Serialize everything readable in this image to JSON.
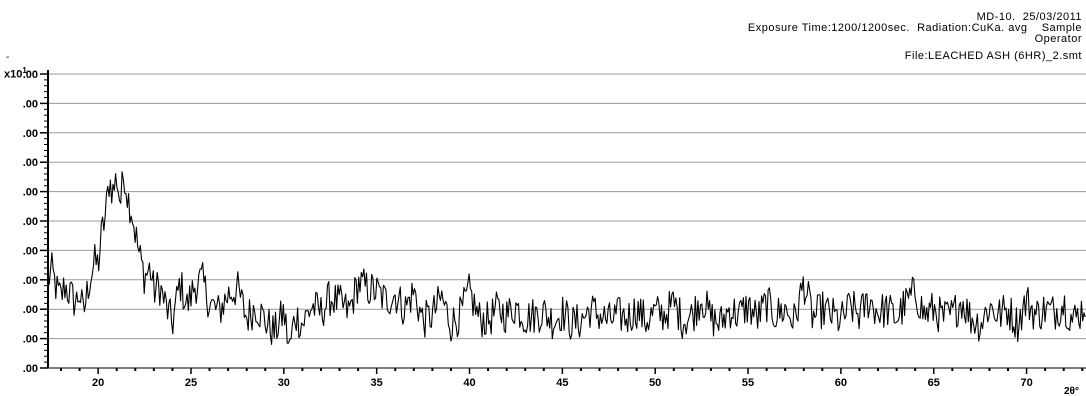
{
  "header": {
    "line1": "MD-10.  25/03/2011",
    "line2": "Exposure Time:1200/1200sec.  Radiation:CuKa. avg    Sample",
    "line3": "Operator",
    "line4": "File:LEACHED ASH (6HR)_2.smt",
    "stray_mark": "-"
  },
  "y_multiplier": {
    "base": "x10",
    "exp": "1"
  },
  "chart_data": {
    "type": "line",
    "title": "",
    "xlabel": "2θ°",
    "ylabel": "",
    "xlim": [
      17.3,
      73.2
    ],
    "ylim": [
      0,
      10
    ],
    "grid": "horizontal",
    "y_tick_labels": [
      ".00",
      ".00",
      ".00",
      ".00",
      ".00",
      ".00",
      ".00",
      ".00",
      ".00",
      ".00",
      ".00"
    ],
    "x_ticks": [
      20,
      25,
      30,
      35,
      40,
      45,
      50,
      55,
      60,
      65,
      70
    ],
    "x_tick_labels": [
      "20",
      "25",
      "30",
      "35",
      "40",
      "45",
      "50",
      "55",
      "60",
      "65",
      "70"
    ],
    "series": [
      {
        "color": "#000000",
        "x": [
          17.3,
          17.5,
          17.8,
          18.0,
          18.2,
          18.5,
          18.8,
          19.0,
          19.2,
          19.5,
          19.8,
          20.0,
          20.2,
          20.4,
          20.6,
          20.8,
          21.0,
          21.2,
          21.4,
          21.6,
          21.8,
          22.0,
          22.2,
          22.5,
          22.8,
          23.0,
          23.3,
          23.6,
          24.0,
          24.4,
          24.8,
          25.2,
          25.6,
          26.0,
          26.5,
          27.0,
          27.5,
          28.0,
          28.5,
          29.0,
          29.5,
          30.0,
          30.3,
          30.6,
          31.0,
          31.5,
          32.0,
          32.5,
          33.0,
          33.5,
          34.0,
          34.5,
          35.0,
          35.5,
          36.0,
          36.5,
          37.0,
          37.5,
          38.0,
          38.5,
          39.0,
          39.5,
          40.0,
          40.5,
          41.0,
          41.5,
          42.0,
          42.5,
          43.0,
          43.5,
          44.0,
          44.5,
          45.0,
          45.5,
          46.0,
          46.5,
          47.0,
          47.5,
          48.0,
          48.5,
          49.0,
          49.5,
          50.0,
          50.5,
          51.0,
          51.5,
          52.0,
          52.5,
          53.0,
          53.5,
          54.0,
          54.5,
          55.0,
          55.5,
          56.0,
          56.5,
          57.0,
          57.5,
          58.0,
          58.5,
          59.0,
          59.5,
          60.0,
          60.5,
          61.0,
          61.5,
          62.0,
          62.5,
          63.0,
          63.5,
          64.0,
          64.5,
          65.0,
          65.5,
          66.0,
          66.5,
          67.0,
          67.5,
          68.0,
          68.5,
          69.0,
          69.5,
          70.0,
          70.5,
          71.0,
          71.5,
          72.0,
          72.5,
          73.0,
          73.2
        ],
        "y": [
          3.0,
          3.3,
          2.6,
          2.4,
          2.8,
          2.5,
          2.2,
          2.6,
          1.8,
          2.9,
          3.6,
          3.5,
          4.6,
          5.2,
          6.4,
          6.0,
          6.5,
          5.6,
          6.7,
          5.8,
          5.4,
          4.6,
          3.9,
          3.1,
          3.4,
          2.6,
          2.8,
          2.2,
          1.5,
          2.9,
          2.1,
          2.8,
          3.0,
          2.2,
          1.9,
          2.5,
          2.7,
          1.7,
          2.1,
          1.6,
          1.2,
          1.9,
          0.6,
          1.8,
          1.5,
          2.1,
          1.9,
          2.4,
          2.2,
          1.9,
          2.9,
          2.7,
          2.6,
          2.3,
          2.5,
          2.0,
          2.6,
          1.6,
          1.8,
          2.4,
          1.5,
          1.8,
          2.6,
          1.7,
          1.6,
          2.0,
          1.8,
          2.1,
          1.7,
          1.8,
          1.9,
          1.6,
          1.9,
          1.5,
          1.6,
          2.0,
          1.8,
          1.6,
          1.8,
          1.7,
          2.0,
          1.6,
          1.9,
          1.8,
          2.2,
          1.6,
          1.8,
          2.4,
          1.7,
          1.5,
          2.0,
          1.8,
          2.1,
          1.7,
          2.2,
          1.8,
          2.0,
          1.6,
          2.9,
          1.7,
          2.0,
          1.8,
          1.6,
          2.1,
          1.8,
          2.3,
          1.9,
          2.0,
          1.7,
          2.2,
          2.6,
          1.8,
          2.0,
          1.7,
          1.8,
          2.3,
          1.7,
          1.5,
          2.1,
          1.8,
          2.0,
          1.5,
          2.3,
          1.8,
          2.0,
          1.9,
          2.2,
          1.6,
          2.0,
          2.3
        ]
      }
    ]
  }
}
